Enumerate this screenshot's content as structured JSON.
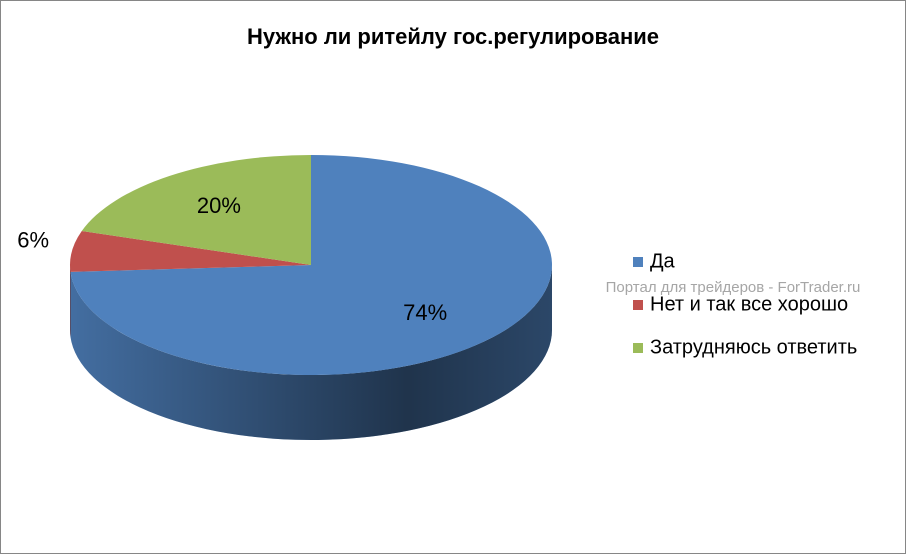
{
  "chart_data": {
    "type": "pie3d",
    "title": "Нужно ли ритейлу гос.регулирование",
    "categories": [
      "Да",
      "Нет и так все хорошо",
      "Затрудняюсь ответить"
    ],
    "values": [
      74,
      6,
      20
    ],
    "value_labels": [
      "74%",
      "6%",
      "20%"
    ],
    "colors": [
      "#4f81bd",
      "#c0504d",
      "#9bbb59"
    ],
    "legend": "right",
    "annotation": "Портал для трейдеров - ForTrader.ru"
  }
}
